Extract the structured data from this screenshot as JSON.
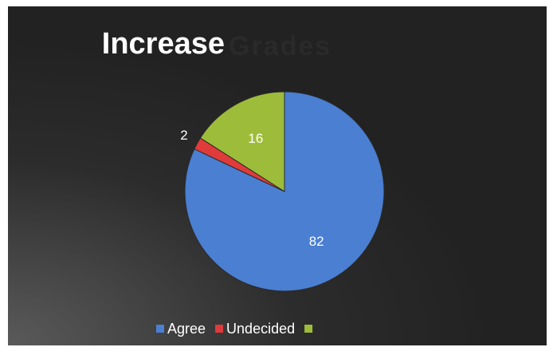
{
  "chart_data": {
    "type": "pie",
    "title": [
      "Increase",
      "Grades"
    ],
    "categories": [
      "Agree",
      "Undecided",
      null
    ],
    "values": [
      82,
      2,
      16
    ],
    "colors": [
      "#4a7fd2",
      "#e03b3b",
      "#9dbd3a"
    ],
    "legend": "bottom"
  }
}
